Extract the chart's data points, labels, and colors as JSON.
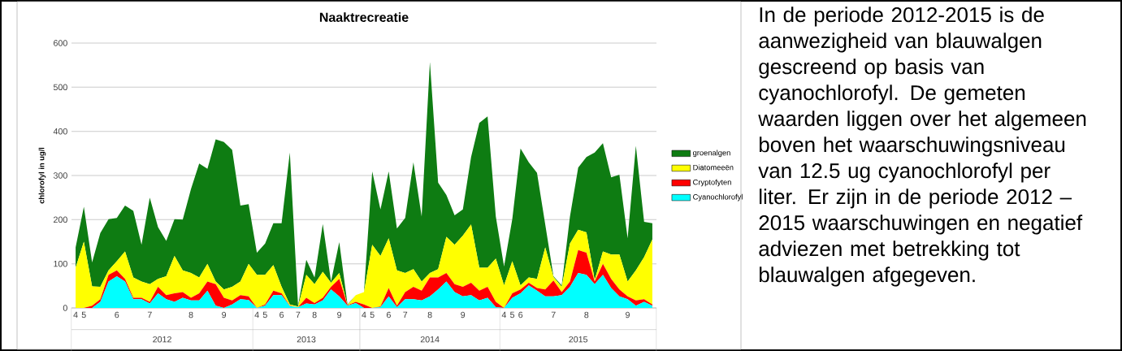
{
  "chart_data": {
    "type": "area",
    "stacked": true,
    "title": "Naaktrecreatie",
    "ylabel": "chlorofyl in ug/l",
    "categories": [
      "4",
      "5",
      null,
      null,
      null,
      "6",
      null,
      null,
      null,
      "7",
      null,
      null,
      null,
      null,
      "8",
      null,
      null,
      null,
      "9",
      null,
      null,
      null,
      "4",
      "5",
      null,
      "6",
      null,
      "7",
      null,
      "8",
      null,
      null,
      "9",
      null,
      null,
      "4",
      "5",
      null,
      "6",
      null,
      "7",
      null,
      null,
      "8",
      null,
      null,
      null,
      "9",
      null,
      null,
      null,
      null,
      "4",
      "5",
      "6",
      null,
      null,
      null,
      "7",
      null,
      null,
      null,
      "8",
      null,
      null,
      null,
      null,
      "9",
      null,
      null,
      null
    ],
    "series": [
      {
        "name": "Cyanochlorofyl",
        "color": "#00ffff",
        "values": [
          0,
          0,
          0,
          14,
          60,
          72,
          60,
          20,
          20,
          10,
          33,
          20,
          14,
          23,
          17,
          17,
          39,
          5,
          0,
          8,
          20,
          18,
          0,
          5,
          29,
          29,
          4,
          2,
          10,
          8,
          17,
          42,
          26,
          5,
          11,
          0,
          0,
          2,
          26,
          2,
          20,
          20,
          17,
          26,
          42,
          60,
          36,
          26,
          29,
          17,
          23,
          2,
          0,
          23,
          33,
          51,
          39,
          26,
          26,
          29,
          48,
          79,
          75,
          54,
          75,
          45,
          26,
          20,
          5,
          14,
          5
        ]
      },
      {
        "name": "Cryptofyten",
        "color": "#ff0000",
        "values": [
          0,
          0,
          5,
          6,
          15,
          13,
          6,
          3,
          3,
          4,
          15,
          9,
          19,
          13,
          6,
          16,
          21,
          49,
          23,
          9,
          9,
          8,
          0,
          3,
          10,
          4,
          1,
          0,
          13,
          3,
          6,
          6,
          40,
          1,
          3,
          8,
          0,
          1,
          19,
          3,
          16,
          28,
          22,
          43,
          27,
          19,
          18,
          22,
          28,
          22,
          25,
          12,
          0,
          10,
          9,
          6,
          6,
          16,
          36,
          7,
          12,
          52,
          50,
          6,
          25,
          21,
          16,
          6,
          12,
          6,
          3
        ]
      },
      {
        "name": "Diatomeeën",
        "color": "#ffff00",
        "values": [
          91,
          150,
          44,
          28,
          10,
          21,
          62,
          46,
          37,
          40,
          18,
          43,
          85,
          49,
          56,
          36,
          40,
          6,
          19,
          31,
          31,
          74,
          75,
          67,
          58,
          15,
          3,
          1,
          52,
          43,
          59,
          9,
          13,
          0,
          15,
          28,
          143,
          115,
          113,
          80,
          43,
          40,
          21,
          10,
          19,
          82,
          89,
          116,
          132,
          52,
          43,
          98,
          51,
          73,
          9,
          12,
          21,
          95,
          8,
          12,
          86,
          46,
          46,
          3,
          28,
          55,
          79,
          34,
          68,
          95,
          147
        ]
      },
      {
        "name": "groenalgen",
        "color": "#0e7c12",
        "values": [
          46,
          79,
          54,
          122,
          116,
          98,
          104,
          151,
          83,
          196,
          117,
          80,
          83,
          115,
          190,
          258,
          215,
          322,
          334,
          310,
          172,
          135,
          50,
          71,
          95,
          144,
          344,
          2,
          34,
          15,
          108,
          3,
          70,
          2,
          0,
          0,
          166,
          105,
          151,
          95,
          125,
          242,
          147,
          478,
          196,
          95,
          67,
          59,
          153,
          328,
          343,
          95,
          43,
          95,
          310,
          261,
          240,
          52,
          2,
          3,
          61,
          141,
          171,
          289,
          245,
          175,
          181,
          98,
          282,
          80,
          37
        ]
      }
    ],
    "ylim": [
      0,
      600
    ],
    "yticks": [
      0,
      100,
      200,
      300,
      400,
      500,
      600
    ],
    "grid": "y",
    "legend": "right",
    "annotations": [
      "2012",
      "2013",
      "2014",
      "2015",
      "In de periode 2012-2015 is de aanwezigheid van blauwalgen gescreend op basis van cyanochlorofyl. De gemeten waarden liggen over het algemeen boven het waarschuwingsniveau van 12.5 ug cyanochlorofyl per liter. Er zijn in de periode 2012 – 2015 waarschuwingen en negatief adviezen met betrekking tot blauwalgen afgegeven."
    ]
  }
}
